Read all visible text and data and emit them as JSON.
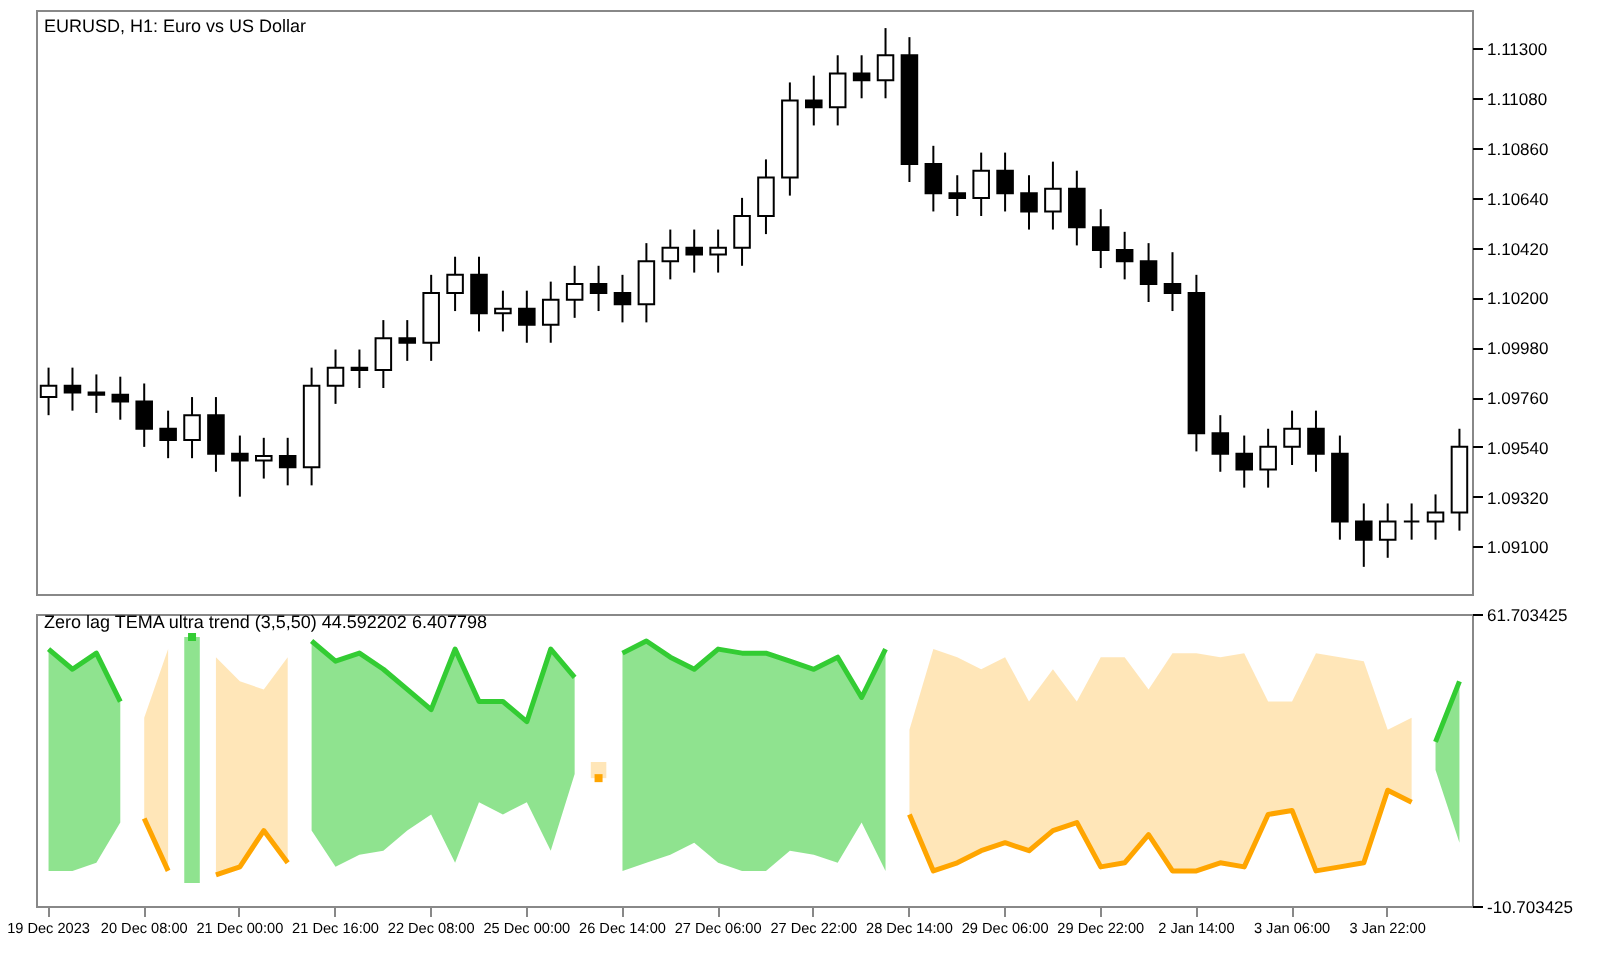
{
  "chart_data": [
    {
      "type": "candlestick",
      "title": "EURUSD, H1:  Euro vs US Dollar",
      "tick_labels": "y",
      "ylim": [
        1.0889,
        1.1147
      ],
      "yticks": [
        {
          "value": 1.113,
          "label": "1.11300"
        },
        {
          "value": 1.1108,
          "label": "1.11080"
        },
        {
          "value": 1.1086,
          "label": "1.10860"
        },
        {
          "value": 1.1064,
          "label": "1.10640"
        },
        {
          "value": 1.1042,
          "label": "1.10420"
        },
        {
          "value": 1.102,
          "label": "1.10200"
        },
        {
          "value": 1.0998,
          "label": "1.09980"
        },
        {
          "value": 1.0976,
          "label": "1.09760"
        },
        {
          "value": 1.0954,
          "label": "1.09540"
        },
        {
          "value": 1.0932,
          "label": "1.09320"
        },
        {
          "value": 1.091,
          "label": "1.09100"
        }
      ],
      "ohlc": [
        [
          1.0976,
          1.0989,
          1.0968,
          1.0981
        ],
        [
          1.0981,
          1.0989,
          1.097,
          1.0978
        ],
        [
          1.0978,
          1.0986,
          1.0969,
          1.0977
        ],
        [
          1.0977,
          1.0985,
          1.0966,
          1.0974
        ],
        [
          1.0974,
          1.0982,
          1.0954,
          1.0962
        ],
        [
          1.0962,
          1.097,
          1.0949,
          1.0957
        ],
        [
          1.0957,
          1.0976,
          1.0949,
          1.0968
        ],
        [
          1.0968,
          1.0976,
          1.0943,
          1.0951
        ],
        [
          1.0951,
          1.0959,
          1.0932,
          1.0948
        ],
        [
          1.0948,
          1.0958,
          1.094,
          1.095
        ],
        [
          1.095,
          1.0958,
          1.0937,
          1.0945
        ],
        [
          1.0945,
          1.0989,
          1.0937,
          1.0981
        ],
        [
          1.0981,
          1.0997,
          1.0973,
          1.0989
        ],
        [
          1.0989,
          1.0997,
          1.098,
          1.0988
        ],
        [
          1.0988,
          1.101,
          1.098,
          1.1002
        ],
        [
          1.1002,
          1.101,
          1.0992,
          1.1
        ],
        [
          1.1,
          1.103,
          1.0992,
          1.1022
        ],
        [
          1.1022,
          1.1038,
          1.1014,
          1.103
        ],
        [
          1.103,
          1.1038,
          1.1005,
          1.1013
        ],
        [
          1.1013,
          1.1023,
          1.1005,
          1.1015
        ],
        [
          1.1015,
          1.1023,
          1.1,
          1.1008
        ],
        [
          1.1008,
          1.1027,
          1.1,
          1.1019
        ],
        [
          1.1019,
          1.1034,
          1.1011,
          1.1026
        ],
        [
          1.1026,
          1.1034,
          1.1014,
          1.1022
        ],
        [
          1.1022,
          1.103,
          1.1009,
          1.1017
        ],
        [
          1.1017,
          1.1044,
          1.1009,
          1.1036
        ],
        [
          1.1036,
          1.105,
          1.1028,
          1.1042
        ],
        [
          1.1042,
          1.105,
          1.1031,
          1.1039
        ],
        [
          1.1039,
          1.105,
          1.1031,
          1.1042
        ],
        [
          1.1042,
          1.1064,
          1.1034,
          1.1056
        ],
        [
          1.1056,
          1.1081,
          1.1048,
          1.1073
        ],
        [
          1.1073,
          1.1115,
          1.1065,
          1.1107
        ],
        [
          1.1107,
          1.1118,
          1.1096,
          1.1104
        ],
        [
          1.1104,
          1.1127,
          1.1096,
          1.1119
        ],
        [
          1.1119,
          1.1127,
          1.1108,
          1.1116
        ],
        [
          1.1116,
          1.1139,
          1.1108,
          1.1127
        ],
        [
          1.1127,
          1.1135,
          1.1071,
          1.1079
        ],
        [
          1.1079,
          1.1087,
          1.1058,
          1.1066
        ],
        [
          1.1066,
          1.1074,
          1.1056,
          1.1064
        ],
        [
          1.1064,
          1.1084,
          1.1056,
          1.1076
        ],
        [
          1.1076,
          1.1084,
          1.1058,
          1.1066
        ],
        [
          1.1066,
          1.1074,
          1.105,
          1.1058
        ],
        [
          1.1058,
          1.108,
          1.105,
          1.1068
        ],
        [
          1.1068,
          1.1076,
          1.1043,
          1.1051
        ],
        [
          1.1051,
          1.1059,
          1.1033,
          1.1041
        ],
        [
          1.1041,
          1.1049,
          1.1028,
          1.1036
        ],
        [
          1.1036,
          1.1044,
          1.1018,
          1.1026
        ],
        [
          1.1026,
          1.104,
          1.1014,
          1.1022
        ],
        [
          1.1022,
          1.103,
          1.0952,
          1.096
        ],
        [
          1.096,
          1.0968,
          1.0943,
          1.0951
        ],
        [
          1.0951,
          1.0959,
          1.0936,
          1.0944
        ],
        [
          1.0944,
          1.0962,
          1.0936,
          1.0954
        ],
        [
          1.0954,
          1.097,
          1.0946,
          1.0962
        ],
        [
          1.0962,
          1.097,
          1.0943,
          1.0951
        ],
        [
          1.0951,
          1.0959,
          1.0913,
          1.0921
        ],
        [
          1.0921,
          1.0929,
          1.0901,
          1.0913
        ],
        [
          1.0913,
          1.0929,
          1.0905,
          1.0921
        ],
        [
          1.0921,
          1.0929,
          1.0913,
          1.0921
        ],
        [
          1.0921,
          1.0933,
          1.0913,
          1.0925
        ],
        [
          1.0925,
          1.0962,
          1.0917,
          1.0954
        ]
      ]
    },
    {
      "type": "line",
      "title": "Zero lag TEMA ultra trend  (3,5,50) 44.592202 6.407798",
      "categories": [
        "19 Dec 2023",
        null,
        null,
        null,
        "20 Dec 08:00",
        null,
        null,
        null,
        "21 Dec 00:00",
        null,
        null,
        null,
        "21 Dec 16:00",
        null,
        null,
        null,
        "22 Dec 08:00",
        null,
        null,
        null,
        "25 Dec 00:00",
        null,
        null,
        null,
        "26 Dec 14:00",
        null,
        null,
        null,
        "27 Dec 06:00",
        null,
        null,
        null,
        "27 Dec 22:00",
        null,
        null,
        null,
        "28 Dec 14:00",
        null,
        null,
        null,
        "29 Dec 06:00",
        null,
        null,
        null,
        "29 Dec 22:00",
        null,
        null,
        null,
        "2 Jan 14:00",
        null,
        null,
        null,
        "3 Jan 06:00",
        null,
        null,
        null,
        "3 Jan 22:00",
        null,
        null,
        null
      ],
      "ylim": [
        -10.703425,
        61.703425
      ],
      "yticks": [
        61.703425,
        -10.703425
      ],
      "series": [
        {
          "color": "#33cc33",
          "values": [
            53,
            48,
            52,
            40,
            null,
            null,
            56,
            null,
            null,
            null,
            null,
            55,
            50,
            52,
            48,
            43,
            38,
            53,
            40,
            40,
            35,
            53,
            46,
            null,
            52,
            55,
            51,
            48,
            53,
            52,
            52,
            50,
            48,
            51,
            41,
            53,
            null,
            null,
            null,
            null,
            null,
            null,
            null,
            null,
            null,
            null,
            null,
            null,
            null,
            null,
            null,
            null,
            null,
            null,
            null,
            null,
            null,
            null,
            30,
            45
          ],
          "upper": [
            53,
            48,
            52,
            40,
            null,
            null,
            56,
            null,
            null,
            null,
            null,
            55,
            50,
            52,
            48,
            43,
            38,
            53,
            40,
            40,
            35,
            53,
            46,
            null,
            52,
            55,
            51,
            48,
            53,
            52,
            52,
            50,
            48,
            51,
            41,
            53,
            null,
            null,
            null,
            null,
            null,
            null,
            null,
            null,
            null,
            null,
            null,
            null,
            null,
            null,
            null,
            null,
            null,
            null,
            null,
            null,
            null,
            null,
            30,
            45
          ],
          "lower": [
            -2,
            -2,
            0,
            10,
            null,
            null,
            -5,
            null,
            null,
            null,
            null,
            8,
            -1,
            2,
            3,
            8,
            12,
            0,
            15,
            12,
            15,
            3,
            22,
            null,
            -2,
            0,
            2,
            5,
            0,
            -2,
            -2,
            3,
            2,
            0,
            10,
            -2,
            null,
            null,
            null,
            null,
            null,
            null,
            null,
            null,
            null,
            null,
            null,
            null,
            null,
            null,
            null,
            null,
            null,
            null,
            null,
            null,
            null,
            null,
            23,
            5
          ]
        },
        {
          "color": "#ffa500",
          "values": [
            null,
            null,
            null,
            null,
            11,
            -2,
            null,
            -3,
            -1,
            8,
            0,
            null,
            null,
            null,
            null,
            null,
            null,
            null,
            null,
            null,
            null,
            null,
            null,
            21,
            null,
            null,
            null,
            null,
            null,
            null,
            null,
            null,
            null,
            null,
            null,
            null,
            12,
            -2,
            0,
            3,
            5,
            3,
            8,
            10,
            -1,
            0,
            7,
            -2,
            -2,
            0,
            -1,
            12,
            13,
            -2,
            -1,
            0,
            18,
            15,
            null,
            null
          ],
          "upper": [
            null,
            null,
            null,
            null,
            36,
            53,
            null,
            51,
            45,
            43,
            51,
            null,
            null,
            null,
            null,
            null,
            null,
            null,
            null,
            null,
            null,
            null,
            null,
            25,
            null,
            null,
            null,
            null,
            null,
            null,
            null,
            null,
            null,
            null,
            null,
            null,
            33,
            53,
            51,
            48,
            51,
            40,
            48,
            40,
            51,
            51,
            43,
            52,
            52,
            51,
            52,
            40,
            40,
            52,
            51,
            50,
            33,
            36,
            null,
            null
          ],
          "lower": [
            null,
            null,
            null,
            null,
            11,
            -2,
            null,
            -3,
            -1,
            8,
            0,
            null,
            null,
            null,
            null,
            null,
            null,
            null,
            null,
            null,
            null,
            null,
            null,
            21,
            null,
            null,
            null,
            null,
            null,
            null,
            null,
            null,
            null,
            null,
            null,
            null,
            12,
            -2,
            0,
            3,
            5,
            3,
            8,
            10,
            -1,
            0,
            7,
            -2,
            -2,
            0,
            -1,
            12,
            13,
            -2,
            -1,
            0,
            18,
            15,
            null,
            null
          ]
        }
      ]
    }
  ]
}
